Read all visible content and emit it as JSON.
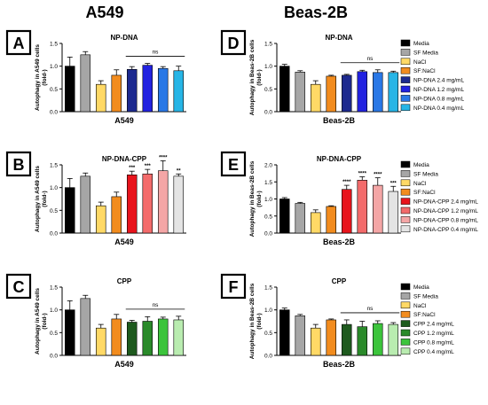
{
  "columns": [
    {
      "title": "A549",
      "x_label": "A549",
      "ylabel": "Autophagy in A549 cells (fold-)"
    },
    {
      "title": "Beas-2B",
      "x_label": "Beas-2B",
      "ylabel": "Autophagy in Beas-2B cells (fold-)"
    }
  ],
  "colors": {
    "media": "#000000",
    "sf_media": "#a6a6a6",
    "nacl": "#ffd966",
    "sfnacl": "#f28c1e",
    "np_dna": [
      "#1d2a8f",
      "#2222e0",
      "#2a78e6",
      "#27b5e6"
    ],
    "np_dna_cpp": [
      "#e8141c",
      "#f36b6b",
      "#f4a6a6",
      "#e4e4e4"
    ],
    "cpp": [
      "#1e5a1e",
      "#2a8a2a",
      "#3cc43c",
      "#b9ecb0"
    ]
  },
  "chart_data": [
    {
      "panel": "A",
      "type": "bar",
      "title": "NP-DNA",
      "xlabel": "A549",
      "ylabel": "Autophagy in A549 cells (fold-)",
      "ylim": [
        0,
        1.5
      ],
      "yticks": [
        "0.0",
        "0.5",
        "1.0",
        "1.5"
      ],
      "categories": [
        "Media",
        "SF Media",
        "NaCl",
        "SF:NaCl",
        "NP-DNA 2.4 mg/mL",
        "NP-DNA 1.2 mg/mL",
        "NP-DNA 0.8 mg/mL",
        "NP-DNA 0.4 mg/mL"
      ],
      "values": [
        1.0,
        1.25,
        0.6,
        0.8,
        0.93,
        1.02,
        0.95,
        0.9
      ],
      "errors": [
        0.2,
        0.07,
        0.08,
        0.12,
        0.06,
        0.04,
        0.04,
        0.1
      ],
      "significance": [
        "",
        "",
        "",
        "",
        "",
        "",
        "",
        ""
      ],
      "bracket": "ns",
      "legend": [
        "Media",
        "SF Media",
        "NaCl",
        "SF:NaCl",
        "NP-DNA 2.4 mg/mL",
        "NP-DNA 1.2 mg/mL",
        "NP-DNA 0.8 mg/mL",
        "NP-DNA 0.4 mg/mL"
      ]
    },
    {
      "panel": "B",
      "type": "bar",
      "title": "NP-DNA-CPP",
      "xlabel": "A549",
      "ylabel": "Autophagy in A549 cells (fold-)",
      "ylim": [
        0,
        1.5
      ],
      "yticks": [
        "0.0",
        "0.5",
        "1.0",
        "1.5"
      ],
      "categories": [
        "Media",
        "SF Media",
        "NaCl",
        "SF:NaCl",
        "NP-DNA-CPP 2.4 mg/mL",
        "NP-DNA-CPP 1.2 mg/mL",
        "NP-DNA-CPP 0.8 mg/mL",
        "NP-DNA-CPP 0.4 mg/mL"
      ],
      "values": [
        1.0,
        1.25,
        0.6,
        0.8,
        1.28,
        1.3,
        1.37,
        1.25
      ],
      "errors": [
        0.2,
        0.07,
        0.08,
        0.1,
        0.08,
        0.1,
        0.22,
        0.05
      ],
      "significance": [
        "",
        "",
        "",
        "",
        "***",
        "***",
        "****",
        "**"
      ],
      "bracket": "",
      "legend": [
        "Media",
        "SF Media",
        "NaCl",
        "SF:NaCl",
        "NP-DNA-CPP 2.4 mg/mL",
        "NP-DNA-CPP 1.2 mg/mL",
        "NP-DNA-CPP 0.8 mg/mL",
        "NP-DNA-CPP 0.4 mg/mL"
      ]
    },
    {
      "panel": "C",
      "type": "bar",
      "title": "CPP",
      "xlabel": "A549",
      "ylabel": "Autophagy in A549 cells (fold-)",
      "ylim": [
        0,
        1.5
      ],
      "yticks": [
        "0.0",
        "0.5",
        "1.0",
        "1.5"
      ],
      "categories": [
        "Media",
        "SF Media",
        "NaCl",
        "SF:NaCl",
        "CPP 2.4 mg/mL",
        "CPP 1.2 mg/mL",
        "CPP 0.8 mg/mL",
        "CPP 0.4 mg/mL"
      ],
      "values": [
        1.0,
        1.25,
        0.6,
        0.8,
        0.73,
        0.75,
        0.8,
        0.78
      ],
      "errors": [
        0.2,
        0.07,
        0.08,
        0.1,
        0.04,
        0.1,
        0.04,
        0.08
      ],
      "significance": [
        "",
        "",
        "",
        "",
        "",
        "",
        "",
        ""
      ],
      "bracket": "ns",
      "legend": [
        "Media",
        "SF Media",
        "NaCl",
        "SF:NaCl",
        "CPP 2.4 mg/mL",
        "CPP 1.2 mg/mL",
        "CPP 0.8 mg/mL",
        "CPP 0.4 mg/mL"
      ]
    },
    {
      "panel": "D",
      "type": "bar",
      "title": "NP-DNA",
      "xlabel": "Beas-2B",
      "ylabel": "Autophagy in Beas-2B cells (fold-)",
      "ylim": [
        0,
        1.5
      ],
      "yticks": [
        "0.0",
        "0.5",
        "1.0",
        "1.5"
      ],
      "categories": [
        "Media",
        "SF Media",
        "NaCl",
        "SF:NaCl",
        "NP-DNA 2.4 mg/mL",
        "NP-DNA 1.2 mg/mL",
        "NP-DNA 0.8 mg/mL",
        "NP-DNA 0.4 mg/mL"
      ],
      "values": [
        1.0,
        0.87,
        0.6,
        0.78,
        0.8,
        0.88,
        0.86,
        0.86
      ],
      "errors": [
        0.04,
        0.03,
        0.08,
        0.02,
        0.02,
        0.03,
        0.06,
        0.03
      ],
      "significance": [
        "",
        "",
        "",
        "",
        "",
        "",
        "",
        ""
      ],
      "bracket": "ns",
      "legend": [
        "Media",
        "SF Media",
        "NaCl",
        "SF:NaCl",
        "NP-DNA 2.4 mg/mL",
        "NP-DNA 1.2 mg/mL",
        "NP-DNA 0.8 mg/mL",
        "NP-DNA 0.4 mg/mL"
      ]
    },
    {
      "panel": "E",
      "type": "bar",
      "title": "NP-DNA-CPP",
      "xlabel": "Beas-2B",
      "ylabel": "Autophagy in Beas-2B cells (fold-)",
      "ylim": [
        0,
        2.0
      ],
      "yticks": [
        "0.0",
        "0.5",
        "1.0",
        "1.5",
        "2.0"
      ],
      "categories": [
        "Media",
        "SF Media",
        "NaCl",
        "SF:NaCl",
        "NP-DNA-CPP 2.4 mg/mL",
        "NP-DNA-CPP 1.2 mg/mL",
        "NP-DNA-CPP 0.8 mg/mL",
        "NP-DNA-CPP 0.4 mg/mL"
      ],
      "values": [
        1.0,
        0.87,
        0.6,
        0.78,
        1.28,
        1.55,
        1.4,
        1.22
      ],
      "errors": [
        0.04,
        0.03,
        0.08,
        0.02,
        0.12,
        0.1,
        0.22,
        0.15
      ],
      "significance": [
        "",
        "",
        "",
        "",
        "****",
        "****",
        "****",
        "***"
      ],
      "bracket": "",
      "legend": [
        "Media",
        "SF Media",
        "NaCl",
        "SF:NaCl",
        "NP-DNA-CPP 2.4 mg/mL",
        "NP-DNA-CPP 1.2 mg/mL",
        "NP-DNA-CPP 0.8 mg/mL",
        "NP-DNA-CPP 0.4 mg/mL"
      ]
    },
    {
      "panel": "F",
      "type": "bar",
      "title": "CPP",
      "xlabel": "Beas-2B",
      "ylabel": "Autophagy in Beas-2B cells (fold-)",
      "ylim": [
        0,
        1.5
      ],
      "yticks": [
        "0.0",
        "0.5",
        "1.0",
        "1.5"
      ],
      "categories": [
        "Media",
        "SF Media",
        "NaCl",
        "SF:NaCl",
        "CPP 2.4 mg/mL",
        "CPP 1.2 mg/mL",
        "CPP 0.8 mg/mL",
        "CPP 0.4 mg/mL"
      ],
      "values": [
        1.0,
        0.87,
        0.6,
        0.78,
        0.68,
        0.63,
        0.7,
        0.68
      ],
      "errors": [
        0.04,
        0.03,
        0.08,
        0.02,
        0.1,
        0.12,
        0.06,
        0.04
      ],
      "significance": [
        "",
        "",
        "",
        "",
        "",
        "",
        "",
        ""
      ],
      "bracket": "ns",
      "legend": [
        "Media",
        "SF Media",
        "NaCl",
        "SF:NaCl",
        "CPP 2.4 mg/mL",
        "CPP 1.2 mg/mL",
        "CPP 0.8 mg/mL",
        "CPP 0.4 mg/mL"
      ]
    }
  ]
}
